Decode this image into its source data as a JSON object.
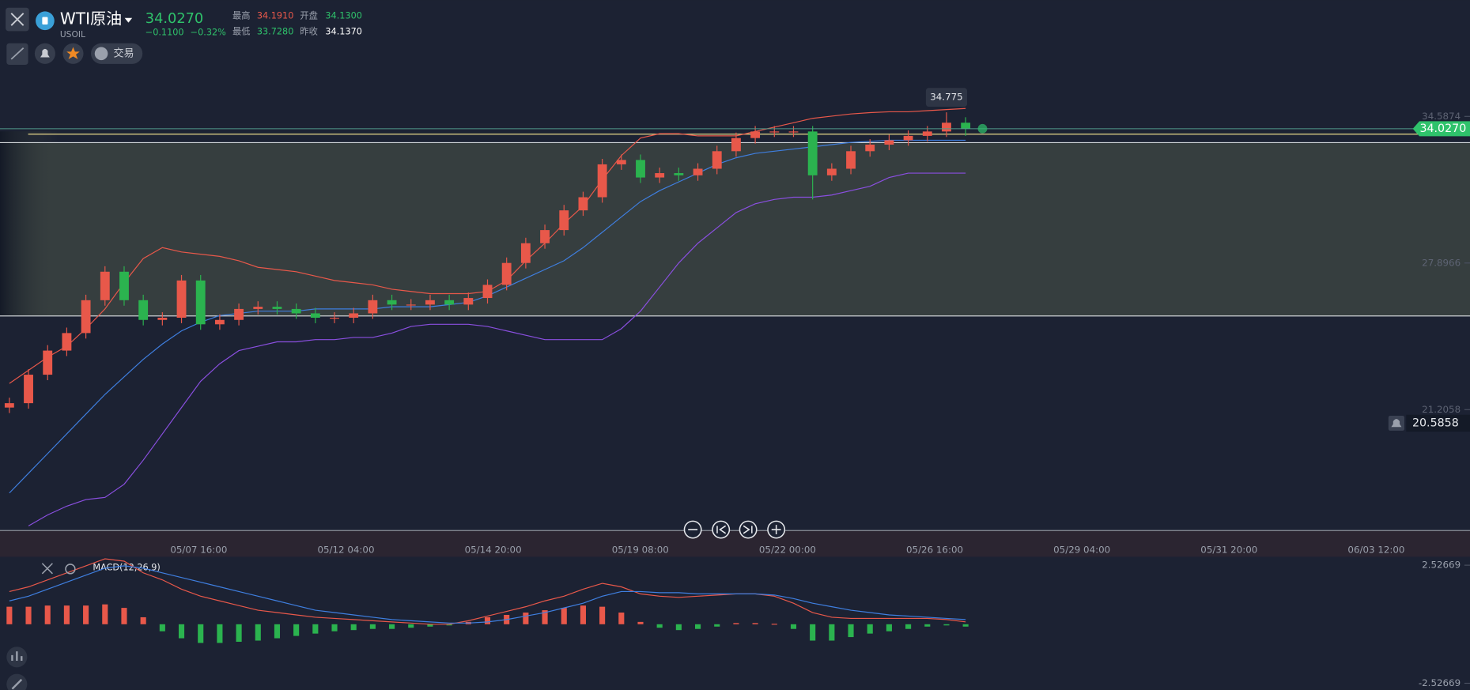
{
  "header": {
    "symbol": "WTI原油",
    "code": "USOIL",
    "price": "34.0270",
    "change": "−0.1100",
    "change_pct": "−0.32%",
    "stats": [
      {
        "label": "最高",
        "value": "34.1910"
      },
      {
        "label": "开盘",
        "value": "34.1300"
      },
      {
        "label": "最低",
        "value": "33.7280"
      },
      {
        "label": "昨收",
        "value": "34.1370"
      }
    ]
  },
  "toolbar": {
    "trade": "交易"
  },
  "chart_data": [
    {
      "type": "candlestick",
      "up_color": "#e8584a",
      "down_color": "#2bb34f",
      "xticks": [
        "05/07 16:00",
        "05/12 04:00",
        "05/14 20:00",
        "05/19 08:00",
        "05/22 00:00",
        "05/26 16:00",
        "05/29 04:00",
        "05/31 20:00",
        "06/03 12:00"
      ],
      "ylim": [
        15.73,
        36.9
      ],
      "yticks": [
        21.2058,
        27.8966,
        34.5874
      ],
      "last_price": {
        "value": 34.027,
        "label": "34.0270"
      },
      "alert": {
        "value": 20.5858,
        "label": "20.5858"
      },
      "candles": [
        [
          21.3,
          21.75,
          21.05,
          21.5
        ],
        [
          21.5,
          23.05,
          21.25,
          22.8
        ],
        [
          22.8,
          24.15,
          22.55,
          23.9
        ],
        [
          23.9,
          24.95,
          23.65,
          24.7
        ],
        [
          24.7,
          26.45,
          24.45,
          26.2
        ],
        [
          26.2,
          27.75,
          25.95,
          27.5
        ],
        [
          27.5,
          27.75,
          25.95,
          26.2
        ],
        [
          26.2,
          26.45,
          25.05,
          25.3
        ],
        [
          25.3,
          25.65,
          25.05,
          25.4
        ],
        [
          25.4,
          27.35,
          25.15,
          27.1
        ],
        [
          27.1,
          27.35,
          24.85,
          25.1
        ],
        [
          25.1,
          25.55,
          24.85,
          25.3
        ],
        [
          25.3,
          26.05,
          25.05,
          25.8
        ],
        [
          25.8,
          26.15,
          25.55,
          25.9
        ],
        [
          25.9,
          26.15,
          25.55,
          25.8
        ],
        [
          25.8,
          26.05,
          25.35,
          25.6
        ],
        [
          25.6,
          25.85,
          25.15,
          25.4
        ],
        [
          25.4,
          25.65,
          25.15,
          25.4
        ],
        [
          25.4,
          25.85,
          25.15,
          25.6
        ],
        [
          25.6,
          26.45,
          25.35,
          26.2
        ],
        [
          26.2,
          26.45,
          25.75,
          26.0
        ],
        [
          26.0,
          26.25,
          25.75,
          26.0
        ],
        [
          26.0,
          26.45,
          25.75,
          26.2
        ],
        [
          26.2,
          26.45,
          25.75,
          26.0
        ],
        [
          26.0,
          26.55,
          25.75,
          26.3
        ],
        [
          26.3,
          27.15,
          26.05,
          26.9
        ],
        [
          26.9,
          28.15,
          26.65,
          27.9
        ],
        [
          27.9,
          29.05,
          27.65,
          28.8
        ],
        [
          28.8,
          29.65,
          28.55,
          29.4
        ],
        [
          29.4,
          30.55,
          29.15,
          30.3
        ],
        [
          30.3,
          31.15,
          30.05,
          30.9
        ],
        [
          30.9,
          32.65,
          30.65,
          32.4
        ],
        [
          32.4,
          32.85,
          32.15,
          32.6
        ],
        [
          32.6,
          32.85,
          31.55,
          31.8
        ],
        [
          31.8,
          32.25,
          31.55,
          32.0
        ],
        [
          32.0,
          32.25,
          31.65,
          31.9
        ],
        [
          31.9,
          32.45,
          31.65,
          32.2
        ],
        [
          32.2,
          33.25,
          31.95,
          33.0
        ],
        [
          33.0,
          33.85,
          32.75,
          33.6
        ],
        [
          33.6,
          34.15,
          33.35,
          33.9
        ],
        [
          33.9,
          34.15,
          33.65,
          33.9
        ],
        [
          33.9,
          34.15,
          33.65,
          33.9
        ],
        [
          33.9,
          34.15,
          30.8,
          31.9
        ],
        [
          31.9,
          32.45,
          31.65,
          32.2
        ],
        [
          32.2,
          33.25,
          31.95,
          33.0
        ],
        [
          33.0,
          33.55,
          32.75,
          33.3
        ],
        [
          33.3,
          33.75,
          33.05,
          33.5
        ],
        [
          33.5,
          33.95,
          33.25,
          33.7
        ],
        [
          33.7,
          34.15,
          33.45,
          33.9
        ],
        [
          33.9,
          34.775,
          33.65,
          34.3
        ],
        [
          34.3,
          34.55,
          33.7,
          34.027
        ]
      ],
      "series": [
        {
          "color": "#e8584a",
          "values": [
            22.4,
            23.0,
            23.6,
            24.1,
            24.9,
            25.8,
            27.0,
            28.1,
            28.6,
            28.4,
            28.3,
            28.2,
            28.0,
            27.7,
            27.6,
            27.5,
            27.3,
            27.1,
            27.0,
            26.9,
            26.7,
            26.6,
            26.5,
            26.5,
            26.5,
            26.6,
            27.1,
            28.0,
            28.8,
            29.7,
            30.5,
            31.7,
            32.8,
            33.6,
            33.8,
            33.8,
            33.7,
            33.7,
            33.7,
            33.9,
            34.1,
            34.3,
            34.5,
            34.6,
            34.7,
            34.76,
            34.8,
            34.8,
            34.85,
            34.9,
            34.95
          ]
        },
        {
          "color": "#3f7fe0",
          "values": [
            17.4,
            18.3,
            19.2,
            20.1,
            21.0,
            21.9,
            22.7,
            23.5,
            24.2,
            24.8,
            25.2,
            25.5,
            25.6,
            25.7,
            25.7,
            25.7,
            25.8,
            25.8,
            25.8,
            25.8,
            25.9,
            25.9,
            25.9,
            26.0,
            26.1,
            26.4,
            26.8,
            27.2,
            27.6,
            28.0,
            28.6,
            29.3,
            30.0,
            30.7,
            31.2,
            31.6,
            32.0,
            32.4,
            32.7,
            32.9,
            33.0,
            33.1,
            33.2,
            33.3,
            33.4,
            33.45,
            33.5,
            33.5,
            33.5,
            33.5,
            33.5
          ]
        },
        {
          "color": "#8a4fe0",
          "values": [
            null,
            15.9,
            16.4,
            16.8,
            17.1,
            17.2,
            17.8,
            18.9,
            20.1,
            21.3,
            22.5,
            23.3,
            23.9,
            24.1,
            24.3,
            24.3,
            24.4,
            24.4,
            24.5,
            24.5,
            24.7,
            25.0,
            25.1,
            25.1,
            25.1,
            25.0,
            24.8,
            24.6,
            24.4,
            24.4,
            24.4,
            24.4,
            24.9,
            25.7,
            26.8,
            27.9,
            28.8,
            29.5,
            30.2,
            30.6,
            30.8,
            30.9,
            30.9,
            31.0,
            31.2,
            31.4,
            31.8,
            32.0,
            32.0,
            32.0,
            32.0
          ]
        }
      ]
    },
    {
      "type": "macd",
      "title": "MACD(12,26,9)",
      "ylim": [
        -2.52669,
        2.52669
      ],
      "yticks": [
        -2.52669,
        2.52669
      ],
      "up_color": "#e8584a",
      "down_color": "#2bb34f",
      "values": [
        0.75,
        0.75,
        0.8,
        0.8,
        0.8,
        0.85,
        0.7,
        0.3,
        -0.3,
        -0.6,
        -0.8,
        -0.8,
        -0.75,
        -0.7,
        -0.6,
        -0.5,
        -0.4,
        -0.3,
        -0.25,
        -0.2,
        -0.2,
        -0.15,
        -0.1,
        -0.05,
        0.1,
        0.3,
        0.4,
        0.5,
        0.6,
        0.7,
        0.8,
        0.75,
        0.5,
        0.1,
        -0.15,
        -0.25,
        -0.2,
        -0.1,
        0.05,
        0.05,
        0.02,
        -0.2,
        -0.7,
        -0.7,
        -0.55,
        -0.4,
        -0.3,
        -0.2,
        -0.1,
        -0.05,
        -0.1
      ],
      "series": [
        {
          "color": "#e8584a",
          "values": [
            1.4,
            1.6,
            1.9,
            2.2,
            2.5,
            2.8,
            2.7,
            2.2,
            1.9,
            1.5,
            1.2,
            1.0,
            0.8,
            0.6,
            0.5,
            0.4,
            0.3,
            0.25,
            0.2,
            0.15,
            0.1,
            0.05,
            0.0,
            0.0,
            0.15,
            0.35,
            0.55,
            0.75,
            1.0,
            1.2,
            1.5,
            1.75,
            1.6,
            1.3,
            1.2,
            1.15,
            1.2,
            1.25,
            1.3,
            1.3,
            1.2,
            0.9,
            0.5,
            0.3,
            0.25,
            0.25,
            0.25,
            0.25,
            0.25,
            0.2,
            0.1
          ]
        },
        {
          "color": "#3f7fe0",
          "values": [
            1.0,
            1.2,
            1.5,
            1.8,
            2.1,
            2.4,
            2.5,
            2.4,
            2.2,
            2.0,
            1.8,
            1.6,
            1.4,
            1.2,
            1.0,
            0.8,
            0.6,
            0.5,
            0.4,
            0.3,
            0.2,
            0.15,
            0.1,
            0.05,
            0.05,
            0.1,
            0.2,
            0.35,
            0.5,
            0.7,
            0.9,
            1.2,
            1.4,
            1.4,
            1.35,
            1.35,
            1.3,
            1.3,
            1.3,
            1.3,
            1.25,
            1.1,
            0.9,
            0.75,
            0.6,
            0.5,
            0.4,
            0.35,
            0.3,
            0.25,
            0.2
          ]
        }
      ]
    }
  ]
}
